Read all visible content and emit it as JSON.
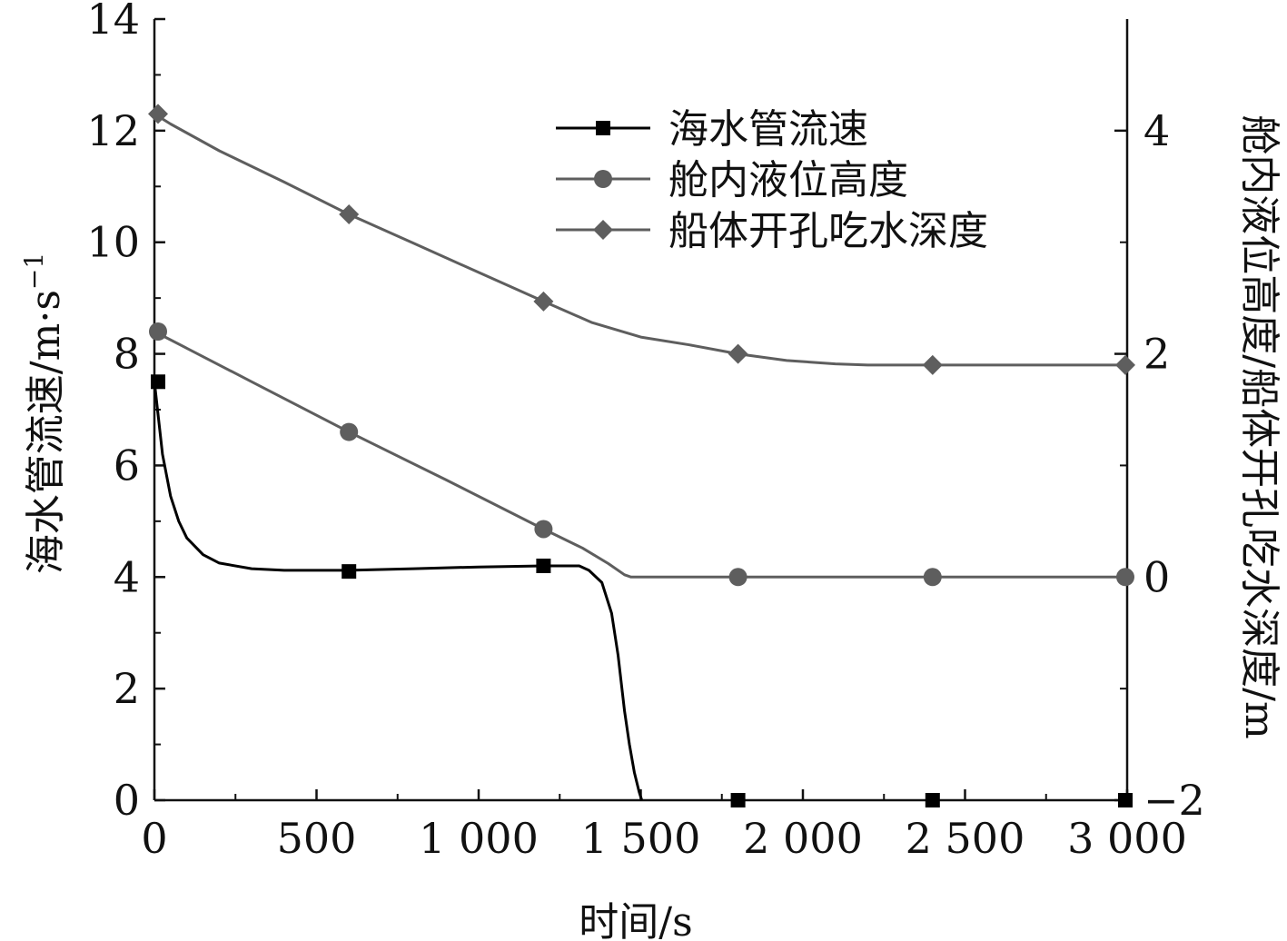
{
  "chart_data": {
    "type": "line",
    "x_axis": {
      "label": "时间/s",
      "range": [
        0,
        3000
      ],
      "ticks": [
        0,
        500,
        1000,
        1500,
        2000,
        2500,
        3000
      ],
      "tick_labels": [
        "0",
        "500",
        "1 000",
        "1 500",
        "2 000",
        "2 500",
        "3 000"
      ]
    },
    "y_axis_left": {
      "label_main": "海水管流速/m·s",
      "label_sup": "−1",
      "range": [
        0,
        14
      ],
      "ticks": [
        0,
        2,
        4,
        6,
        8,
        10,
        12,
        14
      ],
      "tick_labels": [
        "0",
        "2",
        "4",
        "6",
        "8",
        "10",
        "12",
        "14"
      ]
    },
    "y_axis_right": {
      "label": "舱内液位高度/船体开孔吃水深度/m",
      "range": [
        -2,
        5
      ],
      "ticks": [
        -2,
        0,
        2,
        4
      ],
      "tick_labels": [
        "−2",
        "0",
        "2",
        "4"
      ]
    },
    "grid": false,
    "legend_position": "top-right",
    "series": [
      {
        "name": "海水管流速",
        "axis": "left",
        "marker": "square",
        "color": "#000000",
        "markers": [
          [
            0,
            7.5
          ],
          [
            600,
            4.1
          ],
          [
            1200,
            4.2
          ],
          [
            1800,
            0
          ],
          [
            2400,
            0
          ],
          [
            3000,
            0
          ]
        ],
        "curve": [
          [
            0,
            7.5
          ],
          [
            25,
            6.2
          ],
          [
            50,
            5.45
          ],
          [
            75,
            5.0
          ],
          [
            100,
            4.7
          ],
          [
            150,
            4.4
          ],
          [
            200,
            4.25
          ],
          [
            300,
            4.15
          ],
          [
            400,
            4.12
          ],
          [
            600,
            4.12
          ],
          [
            800,
            4.15
          ],
          [
            1000,
            4.18
          ],
          [
            1200,
            4.2
          ],
          [
            1310,
            4.2
          ],
          [
            1340,
            4.12
          ],
          [
            1380,
            3.9
          ],
          [
            1410,
            3.35
          ],
          [
            1430,
            2.6
          ],
          [
            1450,
            1.6
          ],
          [
            1465,
            1.0
          ],
          [
            1480,
            0.5
          ],
          [
            1495,
            0.15
          ],
          [
            1503,
            0
          ]
        ]
      },
      {
        "name": "舱内液位高度",
        "axis": "right",
        "marker": "circle",
        "color": "#5e5e5e",
        "markers": [
          [
            0,
            2.2
          ],
          [
            600,
            1.3
          ],
          [
            1200,
            0.43
          ],
          [
            1800,
            0
          ],
          [
            2400,
            0
          ],
          [
            3000,
            0
          ]
        ],
        "curve": [
          [
            0,
            2.2
          ],
          [
            100,
            2.05
          ],
          [
            300,
            1.75
          ],
          [
            600,
            1.3
          ],
          [
            900,
            0.87
          ],
          [
            1200,
            0.43
          ],
          [
            1320,
            0.26
          ],
          [
            1400,
            0.12
          ],
          [
            1450,
            0.02
          ],
          [
            1470,
            0
          ],
          [
            1800,
            0
          ],
          [
            2400,
            0
          ],
          [
            3000,
            0
          ]
        ]
      },
      {
        "name": "船体开孔吃水深度",
        "axis": "right",
        "marker": "diamond",
        "color": "#5e5e5e",
        "markers": [
          [
            0,
            4.15
          ],
          [
            600,
            3.25
          ],
          [
            1200,
            2.47
          ],
          [
            1800,
            2.0
          ],
          [
            2400,
            1.9
          ],
          [
            3000,
            1.9
          ]
        ],
        "curve": [
          [
            0,
            4.15
          ],
          [
            50,
            4.06
          ],
          [
            200,
            3.82
          ],
          [
            400,
            3.54
          ],
          [
            600,
            3.25
          ],
          [
            800,
            2.99
          ],
          [
            1000,
            2.73
          ],
          [
            1200,
            2.47
          ],
          [
            1350,
            2.28
          ],
          [
            1500,
            2.15
          ],
          [
            1650,
            2.08
          ],
          [
            1800,
            2.0
          ],
          [
            1950,
            1.94
          ],
          [
            2100,
            1.91
          ],
          [
            2200,
            1.9
          ],
          [
            2400,
            1.9
          ],
          [
            3000,
            1.9
          ]
        ]
      }
    ]
  }
}
